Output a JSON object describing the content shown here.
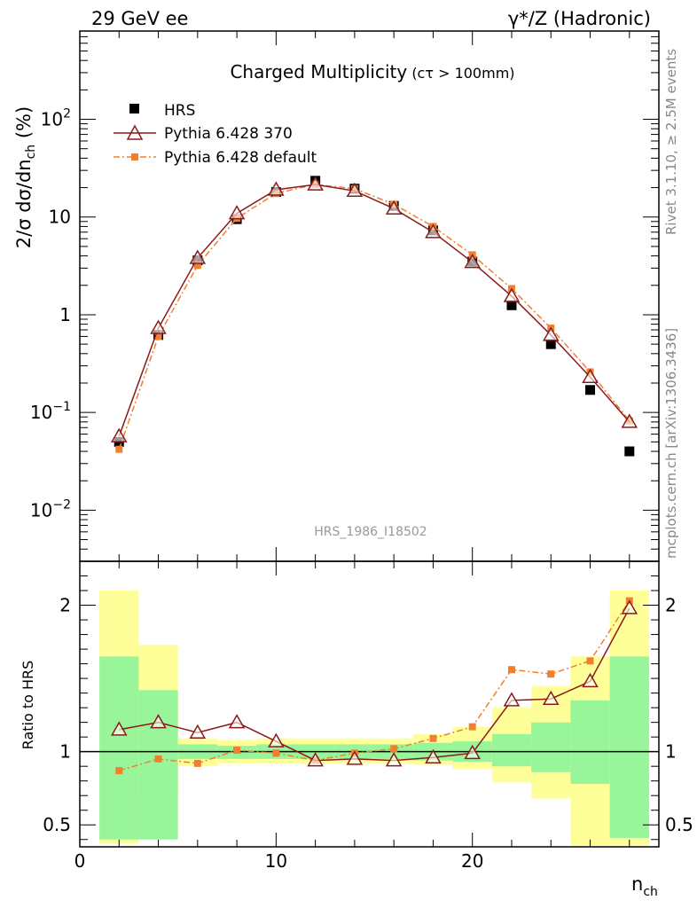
{
  "header": {
    "left": "29 GeV ee",
    "right": "γ*/Z (Hadronic)"
  },
  "side_labels": {
    "rivet": "Rivet 3.1.10, ≥ 2.5M events",
    "mcplots": "mcplots.cern.ch [arXiv:1306.3436]"
  },
  "analysis_id": "HRS_1986_I18502",
  "chart_data": {
    "type": "scatter",
    "title": "Charged Multiplicity",
    "title_suffix": "(cτ > 100mm)",
    "ylabel_main": "2/σ dσ/dn",
    "ylabel_sub": "ch",
    "ylabel_unit": " (%)",
    "ylabel_ratio": "Ratio to HRS",
    "xlabel": "n",
    "xlabel_sub": "ch",
    "x_range": [
      0,
      29.5
    ],
    "y_range_log": [
      0.003,
      800
    ],
    "ratio_range": [
      0.35,
      2.3
    ],
    "x_ticks": [
      0,
      10,
      20
    ],
    "y_ticks": [
      {
        "value": 0.01,
        "base": "10",
        "exp": "−2"
      },
      {
        "value": 0.1,
        "base": "10",
        "exp": "−1"
      },
      {
        "value": 1,
        "base": "1",
        "exp": ""
      },
      {
        "value": 10,
        "base": "10",
        "exp": ""
      },
      {
        "value": 100,
        "base": "10",
        "exp": "2"
      }
    ],
    "ratio_ticks": [
      {
        "value": 0.5,
        "label": "0.5"
      },
      {
        "value": 1,
        "label": "1"
      },
      {
        "value": 2,
        "label": "2"
      }
    ],
    "x": [
      2,
      4,
      6,
      8,
      10,
      12,
      14,
      16,
      18,
      20,
      22,
      24,
      26,
      28
    ],
    "bins": [
      [
        1,
        3
      ],
      [
        3,
        5
      ],
      [
        5,
        7
      ],
      [
        7,
        9
      ],
      [
        9,
        11
      ],
      [
        11,
        13
      ],
      [
        13,
        15
      ],
      [
        15,
        17
      ],
      [
        17,
        19
      ],
      [
        19,
        21
      ],
      [
        21,
        23
      ],
      [
        23,
        25
      ],
      [
        25,
        27
      ],
      [
        27,
        29
      ]
    ],
    "band_inner": [
      [
        0.4,
        1.65
      ],
      [
        0.4,
        1.42
      ],
      [
        0.95,
        1.05
      ],
      [
        0.95,
        1.04
      ],
      [
        0.95,
        1.05
      ],
      [
        0.95,
        1.05
      ],
      [
        0.95,
        1.05
      ],
      [
        0.95,
        1.05
      ],
      [
        0.94,
        1.06
      ],
      [
        0.93,
        1.07
      ],
      [
        0.9,
        1.12
      ],
      [
        0.86,
        1.2
      ],
      [
        0.78,
        1.35
      ],
      [
        0.41,
        1.65
      ]
    ],
    "band_outer": [
      [
        0.37,
        2.1
      ],
      [
        0.71,
        1.73
      ],
      [
        0.9,
        1.09
      ],
      [
        0.92,
        1.08
      ],
      [
        0.92,
        1.09
      ],
      [
        0.92,
        1.09
      ],
      [
        0.92,
        1.09
      ],
      [
        0.92,
        1.09
      ],
      [
        0.91,
        1.12
      ],
      [
        0.88,
        1.17
      ],
      [
        0.79,
        1.3
      ],
      [
        0.68,
        1.45
      ],
      [
        0.36,
        1.65
      ],
      [
        0.36,
        2.1
      ]
    ],
    "series": [
      {
        "name": "HRS",
        "style": "data",
        "color": "#000000",
        "values": [
          0.05,
          0.62,
          3.6,
          9.5,
          18.0,
          23.5,
          19.5,
          13.0,
          7.3,
          3.5,
          1.25,
          0.5,
          0.17,
          0.04
        ],
        "ratio": [
          1,
          1,
          1,
          1,
          1,
          1,
          1,
          1,
          1,
          1,
          1,
          1,
          1,
          1
        ]
      },
      {
        "name": "Pythia 6.428 370",
        "style": "triangle",
        "color": "#8b1a1a",
        "values": [
          0.057,
          0.73,
          3.8,
          10.9,
          19.0,
          21.5,
          18.5,
          12.2,
          7.0,
          3.45,
          1.55,
          0.62,
          0.23,
          0.08
        ],
        "ratio": [
          1.15,
          1.2,
          1.13,
          1.2,
          1.07,
          0.94,
          0.95,
          0.94,
          0.96,
          0.99,
          1.35,
          1.36,
          1.48,
          1.98
        ]
      },
      {
        "name": "Pythia 6.428 default",
        "style": "square",
        "color": "#f08030",
        "values": [
          0.042,
          0.6,
          3.2,
          9.7,
          17.5,
          21.5,
          19.5,
          13.5,
          8.0,
          4.1,
          1.85,
          0.73,
          0.26,
          0.082
        ],
        "ratio": [
          0.87,
          0.95,
          0.92,
          1.01,
          0.99,
          0.94,
          0.99,
          1.02,
          1.09,
          1.17,
          1.56,
          1.53,
          1.62,
          2.03
        ]
      }
    ]
  }
}
